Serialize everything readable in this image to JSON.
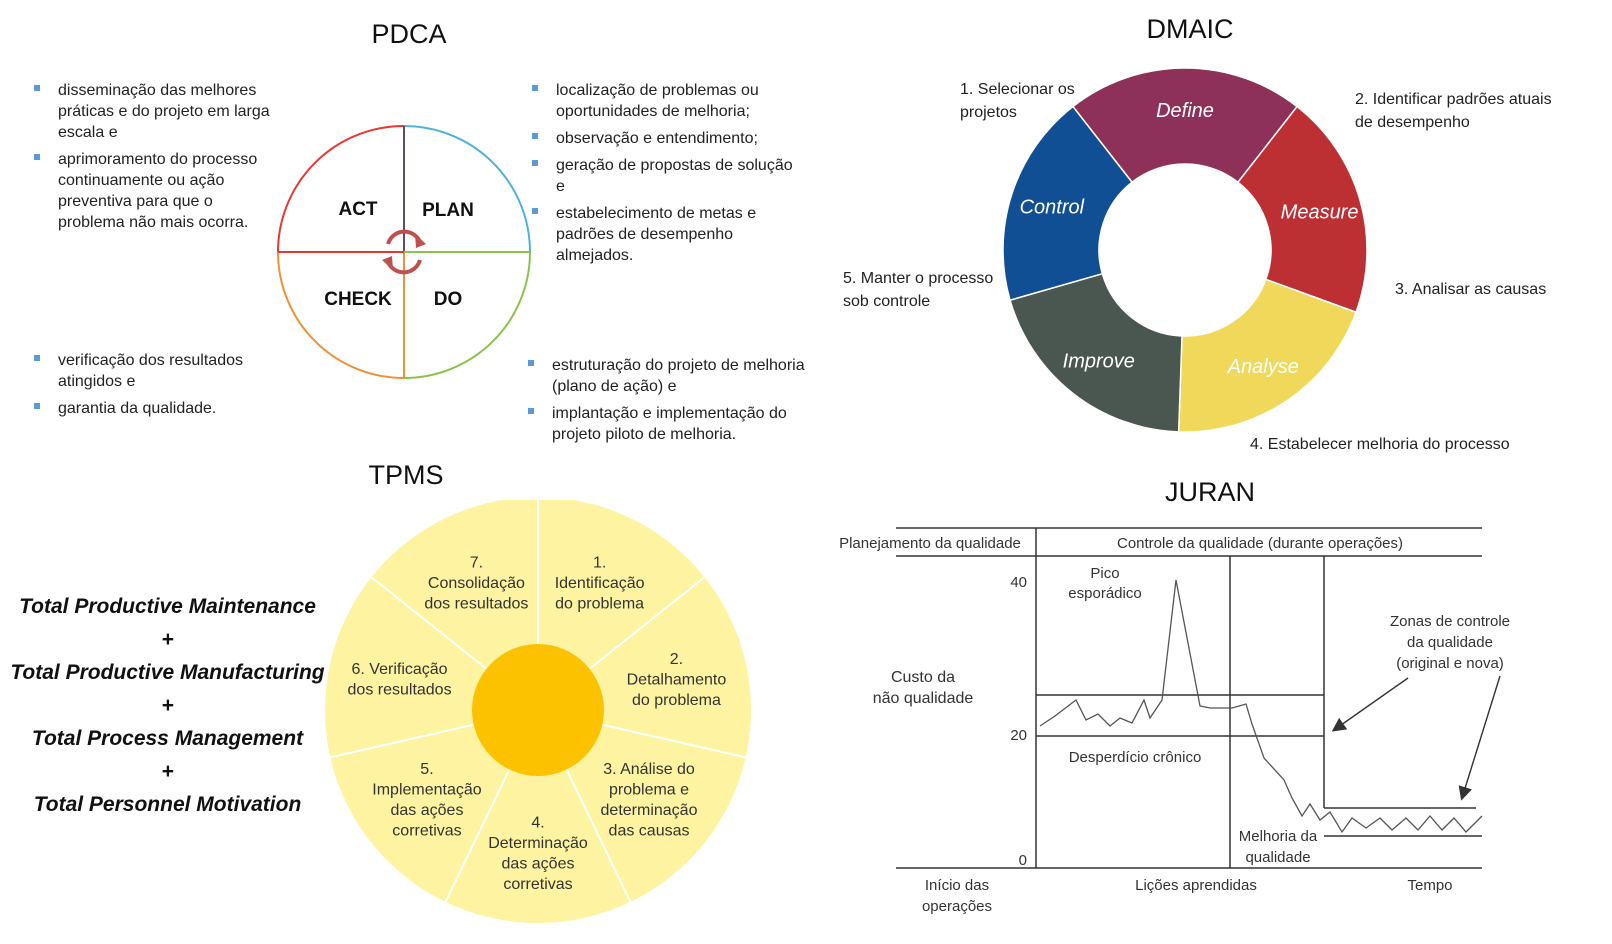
{
  "pdca": {
    "title": "PDCA",
    "quadrants": {
      "act": "ACT",
      "plan": "PLAN",
      "check": "CHECK",
      "do": "DO"
    },
    "colors": {
      "act": "#e53935",
      "plan": "#4fb3d9",
      "check": "#f0913a",
      "do": "#8bc34a",
      "cycle": "#c0504d",
      "divider": "#5b4a7a"
    },
    "act_notes": [
      "disseminação das melhores práticas e do projeto em larga escala e",
      "aprimoramento do processo continuamente ou ação preventiva para que o problema não mais ocorra."
    ],
    "plan_notes": [
      "localização de problemas ou oportunidades de melhoria;",
      "observação e entendimento;",
      "geração de propostas de solução e",
      "estabelecimento de metas e padrões de desempenho almejados."
    ],
    "check_notes": [
      "verificação dos resultados atingidos e",
      "garantia da qualidade."
    ],
    "do_notes": [
      "estruturação do projeto de melhoria (plano de ação) e",
      "implantação e implementação do projeto piloto de melhoria."
    ]
  },
  "dmaic": {
    "title": "DMAIC",
    "segments": [
      {
        "label": "Define",
        "color": "#8e3158"
      },
      {
        "label": "Measure",
        "color": "#bc2f33"
      },
      {
        "label": "Analyse",
        "color": "#f0d95a"
      },
      {
        "label": "Improve",
        "color": "#4a5650"
      },
      {
        "label": "Control",
        "color": "#114f94"
      }
    ],
    "captions": {
      "define": "1. Selecionar os projetos",
      "measure": "2. Identificar padrões atuais de desempenho",
      "analyse": "3. Analisar as causas",
      "improve": "4. Estabelecer melhoria do processo",
      "control": "5. Manter o processo sob controle"
    }
  },
  "tpms": {
    "title": "TPMS",
    "equation": [
      "Total Productive Maintenance",
      "+",
      "Total Productive Manufacturing",
      "+",
      "Total Process Management",
      "+",
      "Total Personnel Motivation"
    ],
    "steps": [
      {
        "lines": [
          "1.",
          "Identificação",
          "do problema"
        ]
      },
      {
        "lines": [
          "2.",
          "Detalhamento",
          "do problema"
        ]
      },
      {
        "lines": [
          "3. Análise do",
          "problema e",
          "determinação",
          "das causas"
        ]
      },
      {
        "lines": [
          "4.",
          "Determinação",
          "das ações",
          "corretivas"
        ]
      },
      {
        "lines": [
          "5.",
          "Implementação",
          "das ações",
          "corretivas"
        ]
      },
      {
        "lines": [
          "6. Verificação",
          "dos resultados"
        ]
      },
      {
        "lines": [
          "7.",
          "Consolidação",
          "dos resultados"
        ]
      }
    ],
    "colors": {
      "wheel": "#fdf3a0",
      "center": "#fcc200",
      "spokes": "#ffffff"
    }
  },
  "juran": {
    "title": "JURAN",
    "header_left": "Planejamento da qualidade",
    "header_right": "Controle da qualidade (durante operações)",
    "y_ticks": [
      "40",
      "20",
      "0"
    ],
    "y_label": [
      "Custo da",
      "não qualidade"
    ],
    "x_labels": {
      "start": [
        "Início das",
        "operações"
      ],
      "middle": "Lições aprendidas",
      "end": "Tempo"
    },
    "annotations": {
      "spike": [
        "Pico",
        "esporádico"
      ],
      "chronic": "Desperdício crônico",
      "improvement": [
        "Melhoria da",
        "qualidade"
      ],
      "zones": [
        "Zonas de controle",
        "da qualidade",
        "(original e nova)"
      ]
    }
  }
}
